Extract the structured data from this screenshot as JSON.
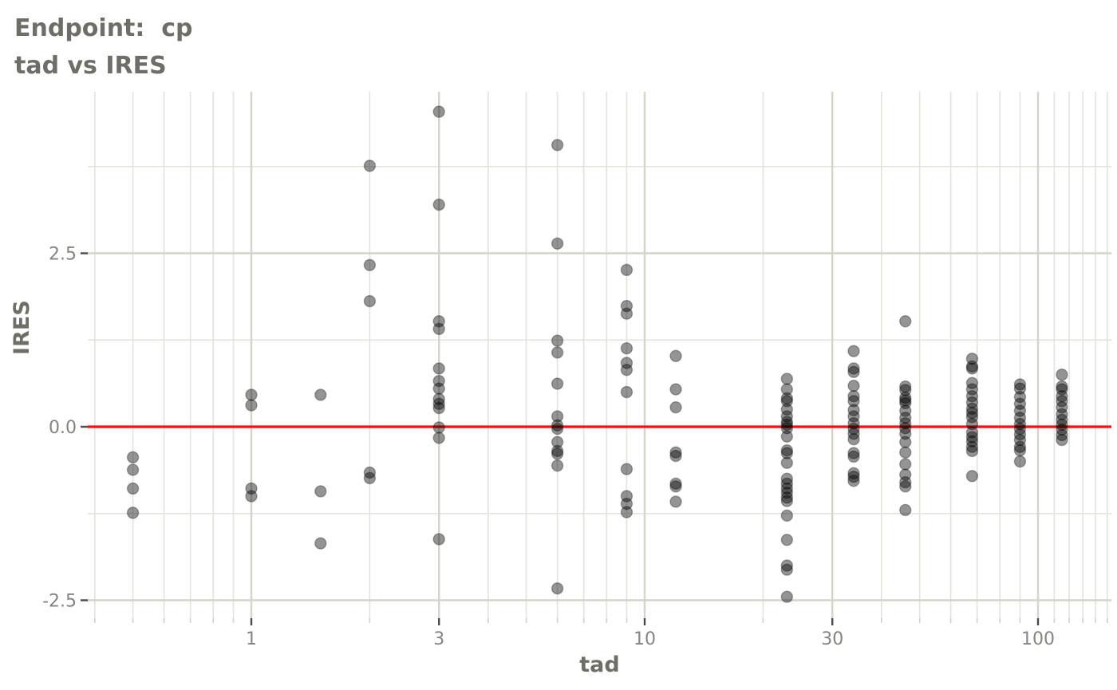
{
  "title": {
    "line1": "Endpoint:  cp",
    "line2": "tad vs IRES"
  },
  "colors": {
    "background": "#ffffff",
    "title_text": "#6f6e66",
    "tick_label_text": "#85857e",
    "grid_major": "#d4d4c9",
    "grid_minor": "#e3e3da",
    "tick_mark_major": "#4a4a4a",
    "tick_mark_minor": "#d0d0c5",
    "point_fill": "rgba(0,0,0,0.42)",
    "point_stroke": "rgba(0,0,0,0.30)",
    "reference_line": "#fc0d0d"
  },
  "chart_data": {
    "type": "scatter",
    "title": "Endpoint:  cp\ntad vs IRES",
    "xlabel": "tad",
    "ylabel": "IRES",
    "x_scale": "log10",
    "x_ticks": [
      {
        "v": 1,
        "label": "1"
      },
      {
        "v": 3,
        "label": "3"
      },
      {
        "v": 10,
        "label": "10"
      },
      {
        "v": 30,
        "label": "30"
      },
      {
        "v": 100,
        "label": "100"
      }
    ],
    "x_minor_ticks": [
      0.4,
      0.5,
      0.6,
      0.7,
      0.8,
      0.9,
      2,
      4,
      5,
      6,
      7,
      8,
      9,
      20,
      40,
      50,
      60,
      70,
      80,
      90,
      110,
      120,
      130,
      140,
      150
    ],
    "y_ticks": [
      {
        "v": 2.5,
        "label": "2.5"
      },
      {
        "v": 0.0,
        "label": "0.0"
      },
      {
        "v": -2.5,
        "label": "-2.5"
      }
    ],
    "y_minor_ticks": [
      3.75,
      1.25,
      -1.25
    ],
    "xlim": [
      0.36,
      155
    ],
    "ylim": [
      -2.76,
      4.85
    ],
    "grid": true,
    "legend": false,
    "reference_line_y": 0.0,
    "series": [
      {
        "name": "IRES",
        "points": [
          [
            0.5,
            -0.44
          ],
          [
            0.5,
            -0.62
          ],
          [
            0.5,
            -0.89
          ],
          [
            0.5,
            -1.24
          ],
          [
            1,
            0.46
          ],
          [
            1,
            0.31
          ],
          [
            1,
            -0.89
          ],
          [
            1,
            -1.0
          ],
          [
            1.5,
            0.46
          ],
          [
            1.5,
            -0.93
          ],
          [
            1.5,
            -1.68
          ],
          [
            2,
            3.76
          ],
          [
            2,
            2.33
          ],
          [
            2,
            1.81
          ],
          [
            2,
            -0.66
          ],
          [
            2,
            -0.74
          ],
          [
            3,
            4.54
          ],
          [
            3,
            3.2
          ],
          [
            3,
            1.52
          ],
          [
            3,
            1.41
          ],
          [
            3,
            0.84
          ],
          [
            3,
            0.66
          ],
          [
            3,
            0.55
          ],
          [
            3,
            0.4
          ],
          [
            3,
            0.33
          ],
          [
            3,
            0.27
          ],
          [
            3,
            -0.01
          ],
          [
            3,
            -0.16
          ],
          [
            3,
            -1.62
          ],
          [
            6,
            4.06
          ],
          [
            6,
            2.64
          ],
          [
            6,
            1.24
          ],
          [
            6,
            1.07
          ],
          [
            6,
            0.62
          ],
          [
            6,
            0.15
          ],
          [
            6,
            0.02
          ],
          [
            6,
            -0.03
          ],
          [
            6,
            -0.22
          ],
          [
            6,
            -0.35
          ],
          [
            6,
            -0.39
          ],
          [
            6,
            -0.56
          ],
          [
            6,
            -2.33
          ],
          [
            9,
            2.26
          ],
          [
            9,
            1.74
          ],
          [
            9,
            1.63
          ],
          [
            9,
            1.13
          ],
          [
            9,
            0.92
          ],
          [
            9,
            0.82
          ],
          [
            9,
            0.5
          ],
          [
            9,
            -0.61
          ],
          [
            9,
            -1.0
          ],
          [
            9,
            -1.11
          ],
          [
            9,
            -1.23
          ],
          [
            12,
            1.02
          ],
          [
            12,
            0.54
          ],
          [
            12,
            0.28
          ],
          [
            12,
            -0.37
          ],
          [
            12,
            -0.42
          ],
          [
            12,
            -0.82
          ],
          [
            12,
            -0.86
          ],
          [
            12,
            -1.08
          ],
          [
            23,
            0.69
          ],
          [
            23,
            0.54
          ],
          [
            23,
            0.41
          ],
          [
            23,
            0.37
          ],
          [
            23,
            0.25
          ],
          [
            23,
            0.15
          ],
          [
            23,
            0.07
          ],
          [
            23,
            0.03
          ],
          [
            23,
            -0.02
          ],
          [
            23,
            -0.14
          ],
          [
            23,
            -0.34
          ],
          [
            23,
            -0.38
          ],
          [
            23,
            -0.52
          ],
          [
            23,
            -0.75
          ],
          [
            23,
            -0.82
          ],
          [
            23,
            -0.89
          ],
          [
            23,
            -0.95
          ],
          [
            23,
            -1.02
          ],
          [
            23,
            -1.07
          ],
          [
            23,
            -1.28
          ],
          [
            23,
            -1.63
          ],
          [
            23,
            -2.0
          ],
          [
            23,
            -2.06
          ],
          [
            23,
            -2.45
          ],
          [
            34,
            1.09
          ],
          [
            34,
            0.84
          ],
          [
            34,
            0.79
          ],
          [
            34,
            0.59
          ],
          [
            34,
            0.44
          ],
          [
            34,
            0.37
          ],
          [
            34,
            0.24
          ],
          [
            34,
            0.15
          ],
          [
            34,
            0.05
          ],
          [
            34,
            -0.03
          ],
          [
            34,
            -0.1
          ],
          [
            34,
            -0.18
          ],
          [
            34,
            -0.38
          ],
          [
            34,
            -0.43
          ],
          [
            34,
            -0.67
          ],
          [
            34,
            -0.72
          ],
          [
            34,
            -0.78
          ],
          [
            46,
            1.52
          ],
          [
            46,
            0.58
          ],
          [
            46,
            0.53
          ],
          [
            46,
            0.42
          ],
          [
            46,
            0.38
          ],
          [
            46,
            0.34
          ],
          [
            46,
            0.23
          ],
          [
            46,
            0.13
          ],
          [
            46,
            0.05
          ],
          [
            46,
            -0.02
          ],
          [
            46,
            -0.1
          ],
          [
            46,
            -0.22
          ],
          [
            46,
            -0.37
          ],
          [
            46,
            -0.54
          ],
          [
            46,
            -0.69
          ],
          [
            46,
            -0.8
          ],
          [
            46,
            -0.86
          ],
          [
            46,
            -1.2
          ],
          [
            68,
            0.98
          ],
          [
            68,
            0.87
          ],
          [
            68,
            0.84
          ],
          [
            68,
            0.63
          ],
          [
            68,
            0.54
          ],
          [
            68,
            0.44
          ],
          [
            68,
            0.35
          ],
          [
            68,
            0.26
          ],
          [
            68,
            0.2
          ],
          [
            68,
            0.14
          ],
          [
            68,
            0.04
          ],
          [
            68,
            -0.08
          ],
          [
            68,
            -0.15
          ],
          [
            68,
            -0.21
          ],
          [
            68,
            -0.29
          ],
          [
            68,
            -0.35
          ],
          [
            68,
            -0.71
          ],
          [
            90,
            0.61
          ],
          [
            90,
            0.55
          ],
          [
            90,
            0.43
          ],
          [
            90,
            0.33
          ],
          [
            90,
            0.23
          ],
          [
            90,
            0.13
          ],
          [
            90,
            0.04
          ],
          [
            90,
            -0.03
          ],
          [
            90,
            -0.11
          ],
          [
            90,
            -0.19
          ],
          [
            90,
            -0.29
          ],
          [
            90,
            -0.34
          ],
          [
            90,
            -0.5
          ],
          [
            115,
            0.75
          ],
          [
            115,
            0.58
          ],
          [
            115,
            0.54
          ],
          [
            115,
            0.44
          ],
          [
            115,
            0.37
          ],
          [
            115,
            0.28
          ],
          [
            115,
            0.18
          ],
          [
            115,
            0.1
          ],
          [
            115,
            0.03
          ],
          [
            115,
            -0.04
          ],
          [
            115,
            -0.12
          ],
          [
            115,
            -0.19
          ]
        ]
      }
    ]
  }
}
